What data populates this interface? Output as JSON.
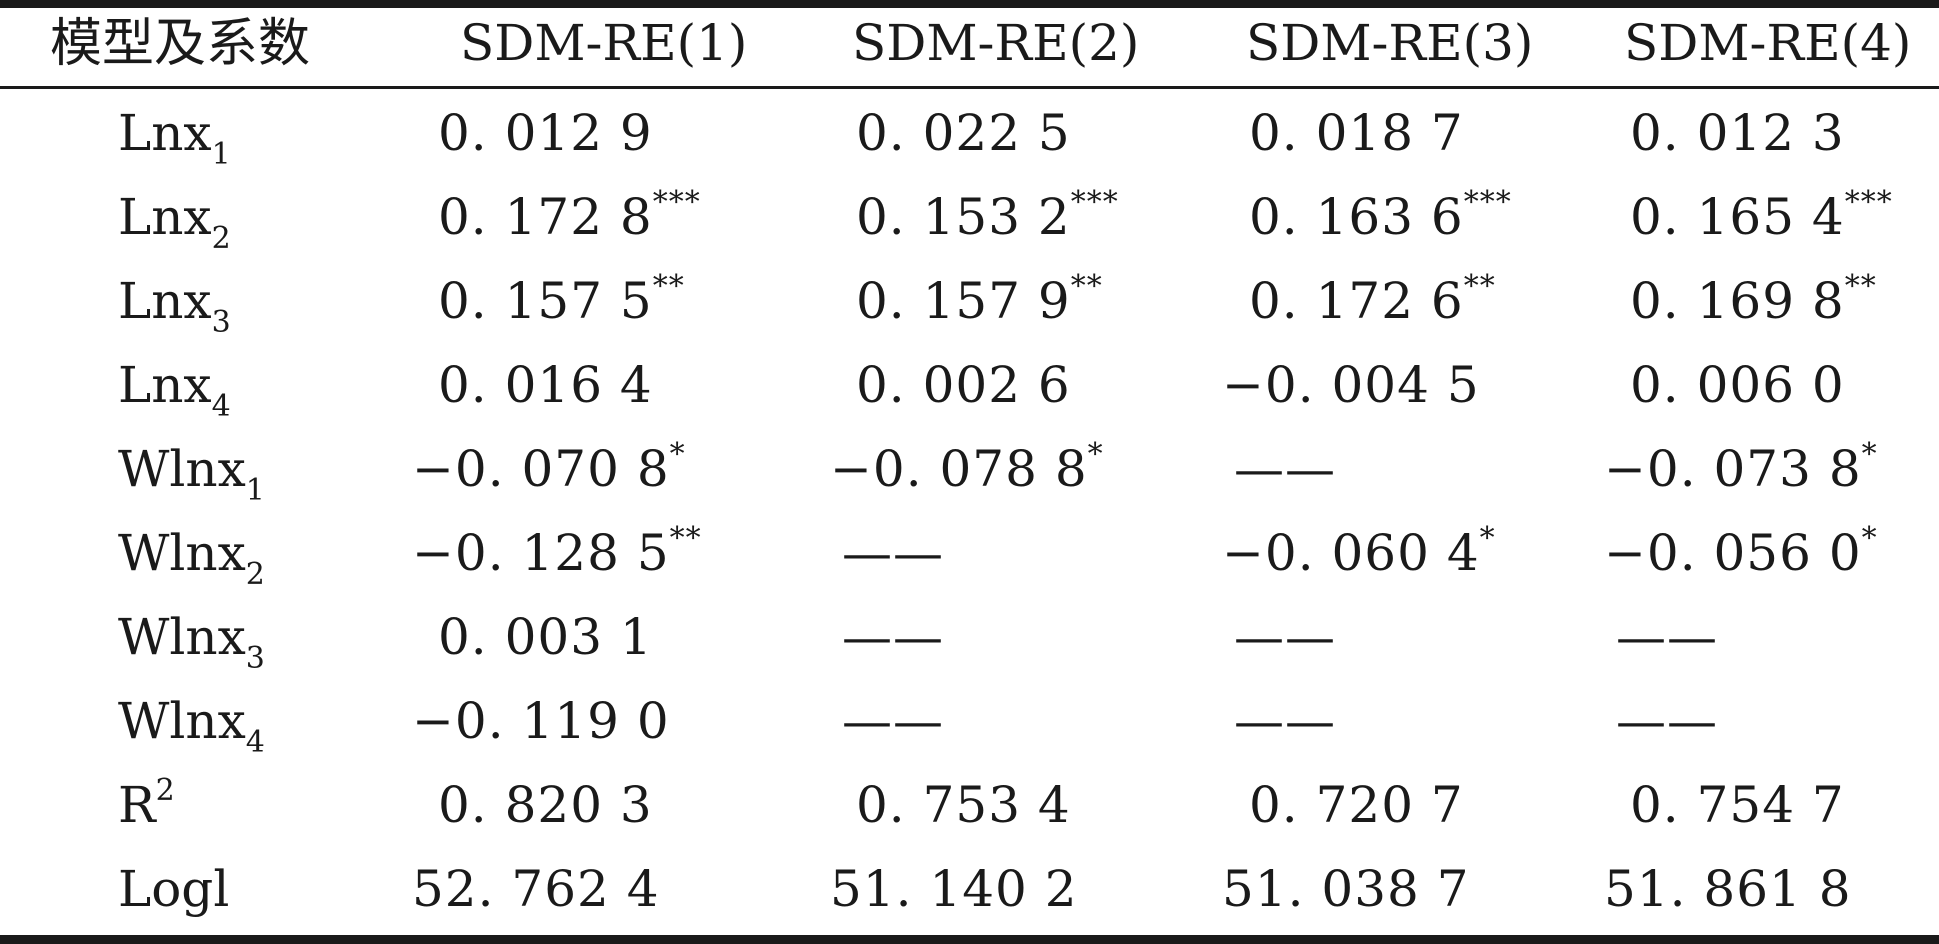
{
  "table": {
    "header": {
      "label": "模型及系数",
      "models": [
        "SDM-RE(1)",
        "SDM-RE(2)",
        "SDM-RE(3)",
        "SDM-RE(4)"
      ]
    },
    "rows": [
      {
        "var": "Lnx",
        "sub": "1",
        "sup": "",
        "cells": [
          {
            "value": "0. 012 9",
            "stars": ""
          },
          {
            "value": "0. 022 5",
            "stars": ""
          },
          {
            "value": "0. 018 7",
            "stars": ""
          },
          {
            "value": "0. 012 3",
            "stars": ""
          }
        ]
      },
      {
        "var": "Lnx",
        "sub": "2",
        "sup": "",
        "cells": [
          {
            "value": "0. 172 8",
            "stars": "***"
          },
          {
            "value": "0. 153 2",
            "stars": "***"
          },
          {
            "value": "0. 163 6",
            "stars": "***"
          },
          {
            "value": "0. 165 4",
            "stars": "***"
          }
        ]
      },
      {
        "var": "Lnx",
        "sub": "3",
        "sup": "",
        "cells": [
          {
            "value": "0. 157 5",
            "stars": "**"
          },
          {
            "value": "0. 157 9",
            "stars": "**"
          },
          {
            "value": "0. 172 6",
            "stars": "**"
          },
          {
            "value": "0. 169 8",
            "stars": "**"
          }
        ]
      },
      {
        "var": "Lnx",
        "sub": "4",
        "sup": "",
        "cells": [
          {
            "value": "0. 016 4",
            "stars": ""
          },
          {
            "value": "0. 002 6",
            "stars": ""
          },
          {
            "value": "−0. 004 5",
            "stars": ""
          },
          {
            "value": "0. 006 0",
            "stars": ""
          }
        ]
      },
      {
        "var": "Wlnx",
        "sub": "1",
        "sup": "",
        "cells": [
          {
            "value": "−0. 070 8",
            "stars": "*"
          },
          {
            "value": "−0. 078 8",
            "stars": "*"
          },
          {
            "value": "——",
            "stars": ""
          },
          {
            "value": "−0. 073 8",
            "stars": "*"
          }
        ]
      },
      {
        "var": "Wlnx",
        "sub": "2",
        "sup": "",
        "cells": [
          {
            "value": "−0. 128 5",
            "stars": "**"
          },
          {
            "value": "——",
            "stars": ""
          },
          {
            "value": "−0. 060 4",
            "stars": "*"
          },
          {
            "value": "−0. 056 0",
            "stars": "*"
          }
        ]
      },
      {
        "var": "Wlnx",
        "sub": "3",
        "sup": "",
        "cells": [
          {
            "value": "0. 003 1",
            "stars": ""
          },
          {
            "value": "——",
            "stars": ""
          },
          {
            "value": "——",
            "stars": ""
          },
          {
            "value": "——",
            "stars": ""
          }
        ]
      },
      {
        "var": "Wlnx",
        "sub": "4",
        "sup": "",
        "cells": [
          {
            "value": "−0. 119 0",
            "stars": ""
          },
          {
            "value": "——",
            "stars": ""
          },
          {
            "value": "——",
            "stars": ""
          },
          {
            "value": "——",
            "stars": ""
          }
        ]
      },
      {
        "var": "R",
        "sub": "",
        "sup": "2",
        "cells": [
          {
            "value": "0. 820 3",
            "stars": ""
          },
          {
            "value": "0. 753 4",
            "stars": ""
          },
          {
            "value": "0. 720 7",
            "stars": ""
          },
          {
            "value": "0. 754 7",
            "stars": ""
          }
        ]
      },
      {
        "var": "Logl",
        "sub": "",
        "sup": "",
        "cells": [
          {
            "value": "52. 762 4",
            "stars": ""
          },
          {
            "value": "51. 140 2",
            "stars": ""
          },
          {
            "value": "51. 038 7",
            "stars": ""
          },
          {
            "value": "51. 861 8",
            "stars": ""
          }
        ]
      }
    ]
  }
}
